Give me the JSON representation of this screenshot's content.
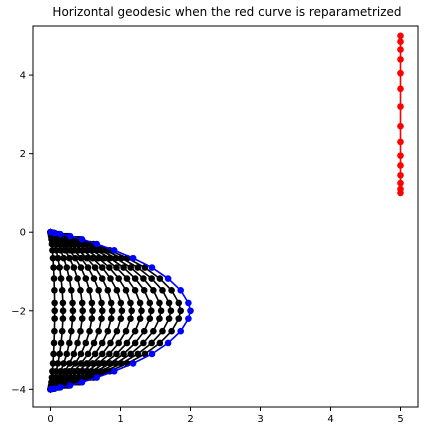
{
  "chart_data": {
    "type": "line",
    "title": "Horizontal geodesic when the red curve is reparametrized",
    "xlabel": "",
    "ylabel": "",
    "xlim": [
      -0.25,
      5.25
    ],
    "ylim": [
      -4.45,
      5.25
    ],
    "xticks": [
      0,
      1,
      2,
      3,
      4,
      5
    ],
    "xtick_labels": [
      "0",
      "1",
      "2",
      "3",
      "4",
      "5"
    ],
    "yticks": [
      -4,
      -2,
      0,
      2,
      4
    ],
    "ytick_labels": [
      "−4",
      "−2",
      "0",
      "2",
      "4"
    ],
    "grid": false,
    "colors": {
      "red": "#ff0000",
      "blue": "#0000ff",
      "black": "#000000"
    },
    "series": [
      {
        "color": "red",
        "marker": "circle",
        "x": [
          5,
          5,
          5,
          5,
          5,
          5,
          5,
          5,
          5,
          5,
          5,
          5,
          5,
          5,
          5
        ],
        "y": [
          1.0,
          1.1,
          1.25,
          1.45,
          1.7,
          1.95,
          2.3,
          2.7,
          3.2,
          3.65,
          4.05,
          4.4,
          4.65,
          4.85,
          5.0
        ]
      },
      {
        "color": "blue",
        "marker": "circle",
        "x": [
          0,
          0.06,
          0.14,
          0.28,
          0.45,
          0.66,
          0.91,
          1.18,
          1.45,
          1.68,
          1.86,
          1.97,
          2.0,
          1.97,
          1.86,
          1.68,
          1.45,
          1.18,
          0.91,
          0.66,
          0.45,
          0.28,
          0.14,
          0.06,
          0
        ],
        "y": [
          0,
          -0.02,
          -0.05,
          -0.1,
          -0.18,
          -0.3,
          -0.46,
          -0.66,
          -0.9,
          -1.18,
          -1.48,
          -1.8,
          -2.0,
          -2.2,
          -2.52,
          -2.82,
          -3.1,
          -3.34,
          -3.54,
          -3.7,
          -3.82,
          -3.9,
          -3.95,
          -3.98,
          -4.0
        ]
      }
    ],
    "intermediate_curves": {
      "color": "black",
      "marker": "circle",
      "count": 14,
      "scales": [
        0.93,
        0.86,
        0.79,
        0.72,
        0.65,
        0.58,
        0.51,
        0.44,
        0.37,
        0.3,
        0.23,
        0.16,
        0.09,
        0.03
      ]
    }
  }
}
